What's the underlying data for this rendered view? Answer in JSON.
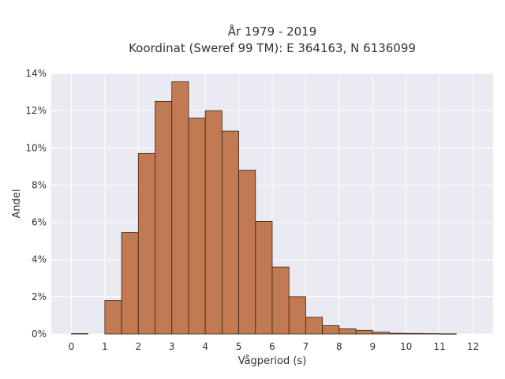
{
  "chart_data": {
    "type": "bar",
    "title": "År 1979 - 2019",
    "subtitle": "Koordinat (Sweref 99 TM): E 364163, N 6136099",
    "xlabel": "Vågperiod (s)",
    "ylabel": "Andel",
    "x_ticks": [
      "0",
      "1",
      "2",
      "3",
      "4",
      "5",
      "6",
      "7",
      "8",
      "9",
      "10",
      "11",
      "12"
    ],
    "y_ticks": [
      "0%",
      "2%",
      "4%",
      "6%",
      "8%",
      "10%",
      "12%",
      "14%"
    ],
    "xlim": [
      -0.6,
      12.6
    ],
    "ylim": [
      0,
      14
    ],
    "bin_width": 0.5,
    "bins_start": [
      0,
      1,
      1.5,
      2,
      2.5,
      3,
      3.5,
      4,
      4.5,
      5,
      5.5,
      6,
      6.5,
      7,
      7.5,
      8,
      8.5,
      9,
      9.5,
      10,
      10.5,
      11
    ],
    "values": [
      0.02,
      1.8,
      5.45,
      9.7,
      12.5,
      13.55,
      11.6,
      12.0,
      10.9,
      8.8,
      6.05,
      3.6,
      2.0,
      0.9,
      0.45,
      0.28,
      0.2,
      0.1,
      0.04,
      0.03,
      0.02,
      0.01
    ],
    "grid": true,
    "colors": {
      "bar_fill": "#c17a52",
      "bar_edge": "#3a2418",
      "plot_background": "#eaeaf2",
      "grid": "#ffffff"
    }
  }
}
